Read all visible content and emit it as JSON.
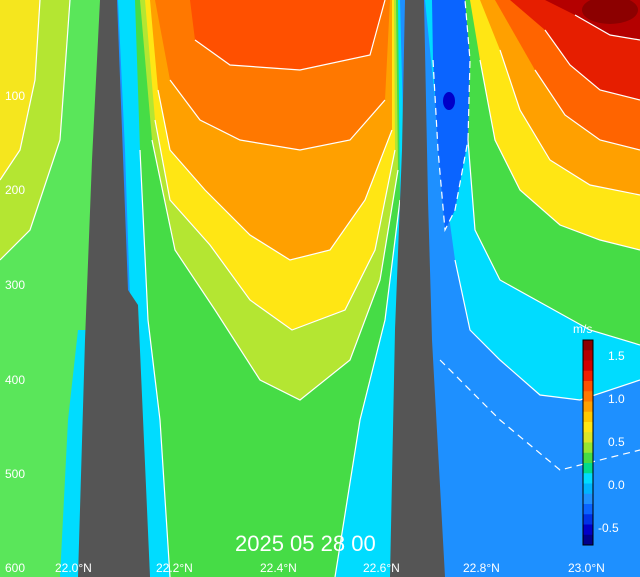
{
  "chart_data": {
    "type": "heatmap",
    "title": "",
    "timestamp": "2025 05 28 00",
    "x_ticks": [
      "22.0°N",
      "22.2°N",
      "22.4°N",
      "22.6°N",
      "22.8°N",
      "23.0°N"
    ],
    "y_ticks": [
      "100",
      "200",
      "300",
      "400",
      "500",
      "600"
    ],
    "colorbar": {
      "unit": "m/s",
      "ticks": [
        "1.5",
        "1.0",
        "0.5",
        "0.0",
        "-0.5"
      ],
      "range": [
        -0.7,
        1.6
      ]
    },
    "colors": {
      "terrain": "#555555",
      "level_neg": "#0000c8",
      "level_low": "#00c8ff",
      "level_mid": "#3cdc3c",
      "level_high": "#ffd700",
      "level_top": "#d00000"
    }
  }
}
